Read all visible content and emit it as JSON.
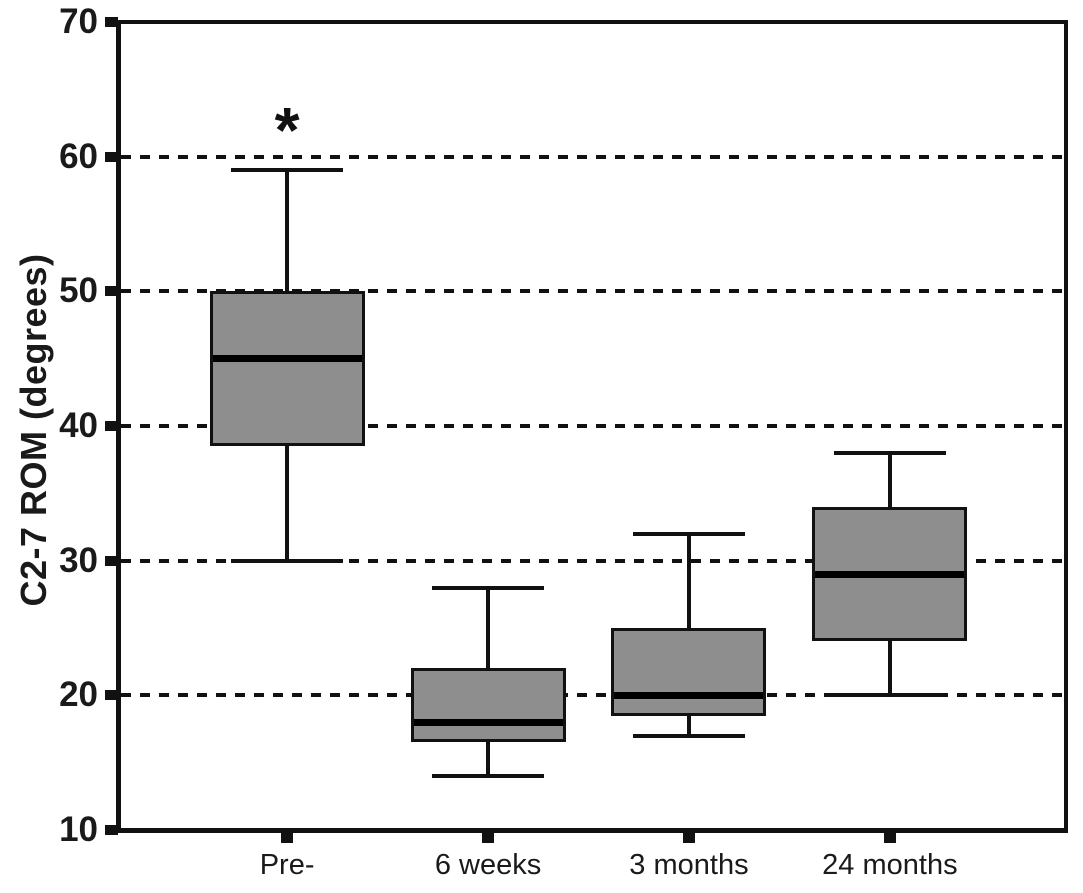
{
  "chart_data": {
    "type": "boxplot",
    "title": "",
    "ylabel": "C2-7 ROM (degrees)",
    "xlabel": "",
    "ylim": [
      10,
      70
    ],
    "yticks": [
      70,
      60,
      50,
      40,
      30,
      20,
      10
    ],
    "gridlines_at": [
      60,
      50,
      40,
      30,
      20
    ],
    "grid_style": "dotted",
    "legend_position": "none",
    "categories": [
      "Pre-",
      "6 weeks",
      "3 months",
      "24 months"
    ],
    "series": [
      {
        "category": "Pre-",
        "whisker_low": 30,
        "q1": 38.5,
        "median": 45,
        "q3": 50,
        "whisker_high": 59,
        "annotation": "*"
      },
      {
        "category": "6 weeks",
        "whisker_low": 14,
        "q1": 16.5,
        "median": 18,
        "q3": 22,
        "whisker_high": 28,
        "annotation": ""
      },
      {
        "category": "3 months",
        "whisker_low": 17,
        "q1": 18.5,
        "median": 20,
        "q3": 25,
        "whisker_high": 32,
        "annotation": ""
      },
      {
        "category": "24 months",
        "whisker_low": 20,
        "q1": 24,
        "median": 29,
        "q3": 34,
        "whisker_high": 38,
        "annotation": ""
      }
    ],
    "colors": {
      "box_fill": "#8e8e8e",
      "box_border": "#111111",
      "median": "#000000",
      "axis": "#111111",
      "grid": "#111111",
      "text": "#1a1a1a",
      "background": "#ffffff"
    }
  }
}
